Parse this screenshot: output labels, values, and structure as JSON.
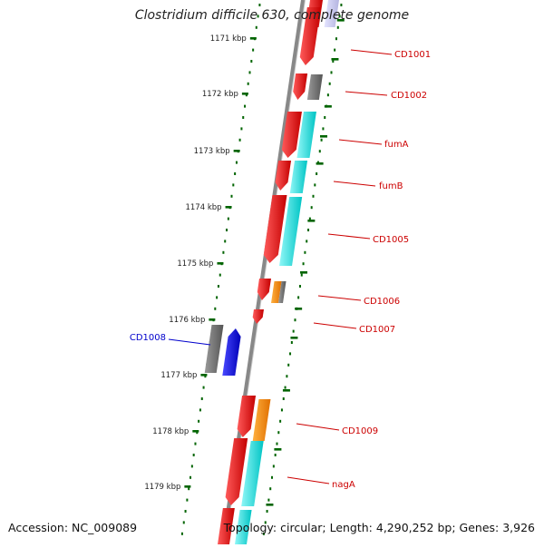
{
  "title": "Clostridium difficile 630, complete genome",
  "accession_text": "Accession: NC_009089",
  "summary_text": "Topology: circular; Length: 4,290,252 bp; Genes: 3,926",
  "scale": {
    "ticks": [
      "1171 kbp",
      "1172 kbp",
      "1173 kbp",
      "1174 kbp",
      "1175 kbp",
      "1176 kbp",
      "1177 kbp",
      "1178 kbp",
      "1179 kbp"
    ]
  },
  "genes": [
    {
      "name": "CD1001",
      "color": "#cc0000"
    },
    {
      "name": "CD1002",
      "color": "#cc0000"
    },
    {
      "name": "fumA",
      "color": "#cc0000"
    },
    {
      "name": "fumB",
      "color": "#cc0000"
    },
    {
      "name": "CD1005",
      "color": "#cc0000"
    },
    {
      "name": "CD1006",
      "color": "#cc0000"
    },
    {
      "name": "CD1007",
      "color": "#cc0000"
    },
    {
      "name": "CD1008",
      "color": "#0000cc"
    },
    {
      "name": "CD1009",
      "color": "#cc0000"
    },
    {
      "name": "nagA",
      "color": "#cc0000"
    }
  ],
  "colors": {
    "forward_cds": "#ff0000",
    "reverse_cds": "#0000ff",
    "gene_gray": "#666666",
    "cyan_feature": "#00e5e5",
    "orange_feature": "#ff8c00",
    "tick_green": "#006400",
    "backbone": "#888888"
  }
}
